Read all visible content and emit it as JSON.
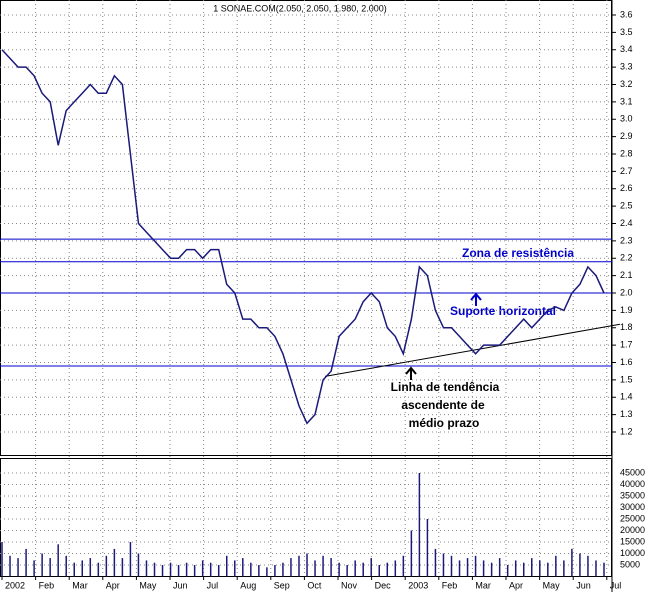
{
  "chart_data": {
    "type": "line",
    "title": "1 SONAE.COM(2.050, 2.050, 1.980, 2.000)",
    "x_labels": [
      "2002",
      "Feb",
      "Mar",
      "Apr",
      "May",
      "Jun",
      "Jul",
      "Aug",
      "Sep",
      "Oct",
      "Nov",
      "Dec",
      "2003",
      "Feb",
      "Mar",
      "Apr",
      "May",
      "Jun",
      "Jul"
    ],
    "series": [
      {
        "color": "#1a1a7a",
        "values": [
          3.4,
          3.35,
          3.3,
          3.3,
          3.25,
          3.15,
          3.1,
          2.85,
          3.05,
          3.1,
          3.15,
          3.2,
          3.15,
          3.15,
          3.25,
          3.2,
          2.8,
          2.4,
          2.35,
          2.3,
          2.25,
          2.2,
          2.2,
          2.25,
          2.25,
          2.2,
          2.25,
          2.25,
          2.05,
          2.0,
          1.85,
          1.85,
          1.8,
          1.8,
          1.75,
          1.65,
          1.5,
          1.35,
          1.25,
          1.3,
          1.5,
          1.55,
          1.75,
          1.8,
          1.85,
          1.95,
          2.0,
          1.95,
          1.8,
          1.75,
          1.65,
          1.85,
          2.15,
          2.1,
          1.9,
          1.8,
          1.8,
          1.75,
          1.7,
          1.65,
          1.7,
          1.7,
          1.7,
          1.75,
          1.8,
          1.85,
          1.8,
          1.85,
          1.9,
          1.92,
          1.9,
          2.0,
          2.05,
          2.15,
          2.1,
          2.0
        ]
      }
    ],
    "ylim": [
      1.1,
      3.7
    ],
    "yticks": [
      1.2,
      1.3,
      1.4,
      1.5,
      1.6,
      1.7,
      1.8,
      1.9,
      {
        "value": 2.0,
        "label": "2.0"
      },
      2.1,
      2.2,
      2.3,
      2.4,
      2.5,
      2.6,
      2.7,
      2.8,
      2.9,
      {
        "value": 3.0,
        "label": "3.0"
      },
      3.1,
      3.2,
      3.3,
      3.4,
      3.5,
      3.6
    ],
    "grid": true,
    "hlines": {
      "color": "#0000cc",
      "values": [
        2.31,
        2.18,
        2.0,
        1.58
      ]
    },
    "trendline": {
      "color": "#000000",
      "values": [
        1.52,
        1.82
      ]
    },
    "annotations": [
      "Zona de resistência",
      "Suporte horizontal",
      "Linha de tendência",
      "ascendente de",
      "médio prazo"
    ],
    "volume": {
      "color": "#1a1a7a",
      "ylim": [
        0,
        50000
      ],
      "yticks": [
        5000,
        10000,
        15000,
        20000,
        25000,
        30000,
        35000,
        40000,
        45000
      ],
      "values": [
        15000,
        9000,
        8000,
        12000,
        7000,
        10000,
        8000,
        14000,
        9000,
        6000,
        7000,
        8000,
        6000,
        9000,
        12000,
        8000,
        15000,
        10000,
        7000,
        6000,
        5000,
        6000,
        5000,
        6000,
        5000,
        7000,
        6000,
        5000,
        9000,
        7000,
        8000,
        6000,
        5000,
        4000,
        5000,
        6000,
        8000,
        9000,
        10000,
        7000,
        9000,
        8000,
        6000,
        5000,
        7000,
        6000,
        8000,
        5000,
        6000,
        7000,
        9000,
        20000,
        45000,
        25000,
        12000,
        10000,
        9000,
        7000,
        8000,
        9000,
        7000,
        6000,
        8000,
        5000,
        7000,
        6000,
        8000,
        7000,
        6000,
        9000,
        7000,
        12000,
        10000,
        9000,
        7000,
        6000
      ]
    }
  }
}
